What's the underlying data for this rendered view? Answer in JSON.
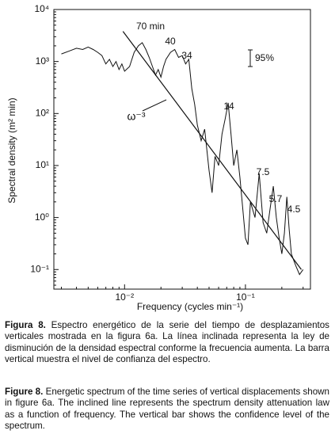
{
  "chart_data": {
    "type": "line",
    "xlabel": "Frequency (cycles min⁻¹)",
    "ylabel": "Spectral density (m² min)",
    "log_x": true,
    "log_y": true,
    "xlim": [
      0.0026,
      0.345
    ],
    "ylim": [
      0.042,
      10000
    ],
    "xticks": [
      {
        "value": 0.01,
        "label": "10⁻²"
      },
      {
        "value": 0.1,
        "label": "10⁻¹"
      }
    ],
    "yticks": [
      {
        "value": 0.1,
        "label": "10⁻¹"
      },
      {
        "value": 1,
        "label": "10⁰"
      },
      {
        "value": 10,
        "label": "10¹"
      },
      {
        "value": 100,
        "label": "10²"
      },
      {
        "value": 1000,
        "label": "10³"
      },
      {
        "value": 10000,
        "label": "10⁴"
      }
    ],
    "series": [
      {
        "color": "#111111",
        "x": [
          0.003,
          0.0035,
          0.004,
          0.0045,
          0.005,
          0.0055,
          0.006,
          0.0065,
          0.007,
          0.0075,
          0.008,
          0.0085,
          0.009,
          0.0095,
          0.01,
          0.011,
          0.012,
          0.013,
          0.014,
          0.015,
          0.016,
          0.017,
          0.018,
          0.019,
          0.02,
          0.021,
          0.022,
          0.024,
          0.026,
          0.028,
          0.03,
          0.032,
          0.034,
          0.036,
          0.038,
          0.04,
          0.043,
          0.046,
          0.05,
          0.053,
          0.056,
          0.06,
          0.064,
          0.068,
          0.072,
          0.076,
          0.08,
          0.085,
          0.09,
          0.095,
          0.1,
          0.105,
          0.11,
          0.12,
          0.13,
          0.14,
          0.15,
          0.16,
          0.17,
          0.18,
          0.19,
          0.2,
          0.21,
          0.22,
          0.23,
          0.24,
          0.26,
          0.28,
          0.3
        ],
        "values": [
          1400,
          1600,
          1800,
          1700,
          1900,
          1700,
          1500,
          1300,
          900,
          1100,
          800,
          1000,
          700,
          900,
          650,
          800,
          1500,
          2000,
          2300,
          1700,
          1200,
          800,
          550,
          700,
          500,
          800,
          1100,
          1500,
          1700,
          1200,
          1300,
          900,
          1100,
          300,
          150,
          60,
          30,
          50,
          8,
          3,
          15,
          10,
          40,
          80,
          160,
          40,
          10,
          20,
          6,
          1.5,
          0.4,
          0.3,
          2,
          1,
          7,
          0.8,
          0.5,
          1.5,
          4,
          1,
          0.4,
          0.2,
          0.5,
          2.5,
          0.6,
          0.2,
          0.12,
          0.08,
          0.1
        ]
      }
    ],
    "reference_line": {
      "label": "ω⁻³",
      "x": [
        0.0097,
        0.29
      ],
      "values": [
        3800,
        0.1
      ]
    },
    "annotations": [
      "70 min",
      "40",
      "34",
      "14",
      "7.5",
      "5.7",
      "4.5"
    ],
    "confidence_bar": {
      "label": "95%"
    }
  },
  "caption": {
    "spanish": {
      "lead": "Figura 8.",
      "text": " Espectro energético de la serie del tiempo de desplazamientos verticales mostrada en la figura 6a. La línea inclinada representa la ley de disminución de la densidad espectral conforme la frecuencia aumenta. La barra vertical muestra el nivel de confianza del espectro."
    },
    "english": {
      "lead": "Figure 8.",
      "text": " Energetic spectrum of the time series of vertical displacements shown in figure 6a. The inclined line represents the spectrum density attenuation law as a function of frequency. The vertical bar shows the confidence level of the spectrum."
    }
  }
}
